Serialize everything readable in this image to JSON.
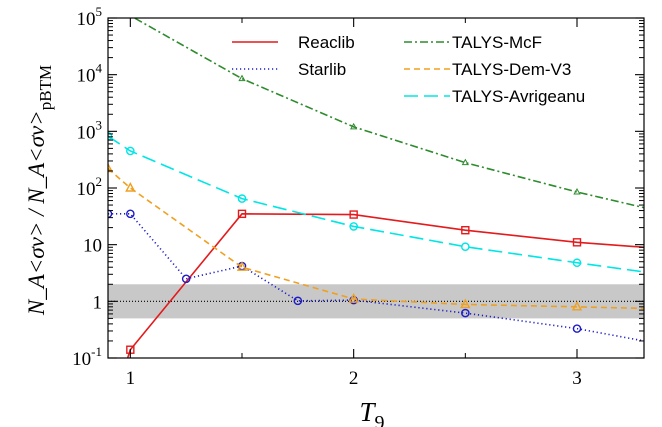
{
  "chart_data": {
    "type": "line",
    "xlabel_main": "T",
    "xlabel_sub": "9",
    "ylabel_text": "N_A<σv> / N_A<σv>",
    "ylabel_sub": "pBTM",
    "x_log": false,
    "y_log": true,
    "xlim": [
      0.9,
      3.3
    ],
    "ylim": [
      0.1,
      100000
    ],
    "x_ticks": [
      {
        "value": 1,
        "label": "1"
      },
      {
        "value": 2,
        "label": "2"
      },
      {
        "value": 3,
        "label": "3"
      }
    ],
    "y_ticks": [
      {
        "value": 0.1,
        "base": "10",
        "exp": "-1"
      },
      {
        "value": 1,
        "base": "1",
        "exp": ""
      },
      {
        "value": 10,
        "base": "10",
        "exp": ""
      },
      {
        "value": 100,
        "base": "10",
        "exp": "2"
      },
      {
        "value": 1000,
        "base": "10",
        "exp": "3"
      },
      {
        "value": 10000,
        "base": "10",
        "exp": "4"
      },
      {
        "value": 100000,
        "base": "10",
        "exp": "5"
      }
    ],
    "shaded_band": {
      "y_low": 0.5,
      "y_high": 2,
      "color": "#c8c8c8"
    },
    "reference_line": {
      "y": 1,
      "color": "#000000",
      "style": "dotted"
    },
    "legend_placement": "top-right",
    "series": [
      {
        "name": "Reaclib",
        "color": "#e41a1c",
        "dash": "solid",
        "marker": "square",
        "points": [
          [
            1.0,
            0.14
          ],
          [
            1.5,
            35
          ],
          [
            2.0,
            34
          ],
          [
            2.5,
            18
          ],
          [
            3.0,
            11
          ],
          [
            3.3,
            9
          ]
        ],
        "marker_idx": [
          0,
          1,
          2,
          3,
          4
        ],
        "pre": [
          [
            0.98,
            0.08
          ]
        ]
      },
      {
        "name": "Starlib",
        "color": "#1c1cc8",
        "dash": "dotted",
        "marker": "circle",
        "points": [
          [
            0.9,
            35
          ],
          [
            1.0,
            35
          ],
          [
            1.25,
            2.5
          ],
          [
            1.5,
            4.2
          ],
          [
            1.75,
            1.02
          ],
          [
            2.0,
            1.05
          ],
          [
            2.5,
            0.62
          ],
          [
            3.0,
            0.33
          ],
          [
            3.3,
            0.2
          ]
        ],
        "marker_idx": [
          0,
          1,
          2,
          3,
          4,
          5,
          6,
          7
        ]
      },
      {
        "name": "TALYS-McF",
        "color": "#2e8b2e",
        "dash": "dashdot",
        "marker": "triangle-small",
        "points": [
          [
            1.0,
            110000
          ],
          [
            1.5,
            8500
          ],
          [
            2.0,
            1200
          ],
          [
            2.5,
            280
          ],
          [
            3.0,
            85
          ],
          [
            3.3,
            45
          ]
        ],
        "marker_idx": [
          1,
          2,
          3,
          4
        ],
        "pre": [
          [
            0.9,
            200000
          ]
        ]
      },
      {
        "name": "TALYS-Dem-V3",
        "color": "#f0a020",
        "dash": "dashed",
        "marker": "triangle",
        "points": [
          [
            0.9,
            220
          ],
          [
            1.0,
            100
          ],
          [
            1.5,
            4
          ],
          [
            2.0,
            1.1
          ],
          [
            2.5,
            0.88
          ],
          [
            3.0,
            0.8
          ],
          [
            3.3,
            0.75
          ]
        ],
        "marker_idx": [
          0,
          1,
          2,
          3,
          4,
          5
        ]
      },
      {
        "name": "TALYS-Avrigeanu",
        "color": "#00e5e5",
        "dash": "longdash",
        "marker": "circle",
        "points": [
          [
            0.9,
            820
          ],
          [
            1.0,
            450
          ],
          [
            1.5,
            65
          ],
          [
            2.0,
            21
          ],
          [
            2.5,
            9.2
          ],
          [
            3.0,
            4.8
          ],
          [
            3.3,
            3.3
          ]
        ],
        "marker_idx": [
          0,
          1,
          2,
          3,
          4,
          5
        ]
      }
    ]
  }
}
